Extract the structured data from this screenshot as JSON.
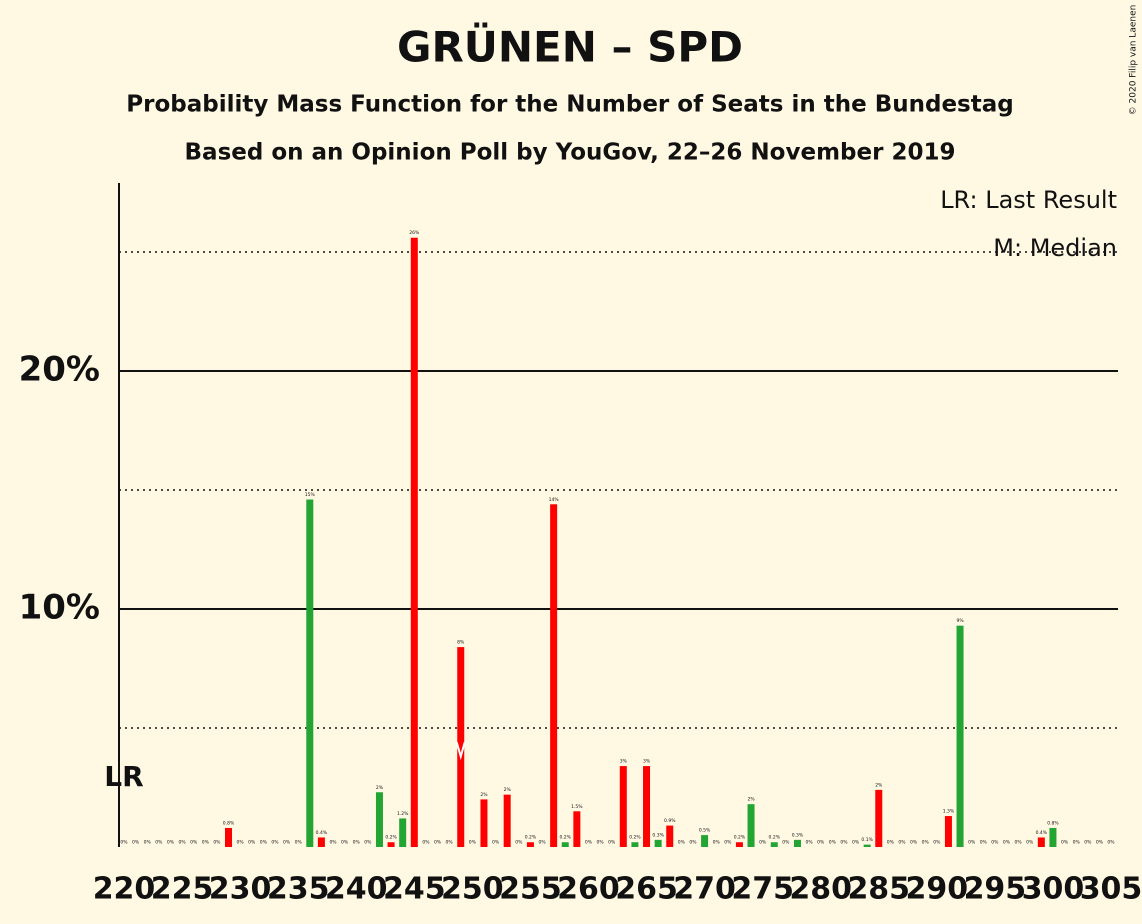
{
  "chart_data": {
    "type": "bar",
    "title": "GRÜNEN – SPD",
    "subtitle": "Probability Mass Function for the Number of Seats in the Bundestag",
    "subtitle2": "Based on an Opinion Poll by YouGov, 22–26 November 2019",
    "copyright": "© 2020 Filip van Laenen",
    "legend": [
      "LR: Last Result",
      "M: Median"
    ],
    "last_result": {
      "x": 220,
      "label": "LR"
    },
    "median": 249,
    "x": [
      220,
      221,
      222,
      223,
      224,
      225,
      226,
      227,
      228,
      229,
      230,
      231,
      232,
      233,
      234,
      235,
      236,
      237,
      238,
      239,
      240,
      241,
      242,
      243,
      244,
      245,
      246,
      247,
      248,
      249,
      250,
      251,
      252,
      253,
      254,
      255,
      256,
      257,
      258,
      259,
      260,
      261,
      262,
      263,
      264,
      265,
      266,
      267,
      268,
      269,
      270,
      271,
      272,
      273,
      274,
      275,
      276,
      277,
      278,
      279,
      280,
      281,
      282,
      283,
      284,
      285,
      286,
      287,
      288,
      289,
      290,
      291,
      292,
      293,
      294,
      295,
      296,
      297,
      298,
      299,
      300,
      301,
      302,
      303,
      304,
      305
    ],
    "values": [
      0,
      0,
      0,
      0,
      0,
      0,
      0,
      0,
      0,
      0.8,
      0,
      0,
      0,
      0,
      0,
      0,
      14.6,
      0.4,
      0,
      0,
      0,
      0,
      2.3,
      0.2,
      1.2,
      25.6,
      0,
      0,
      0,
      8.4,
      0,
      2.0,
      0,
      2.2,
      0,
      0.2,
      0,
      14.4,
      0.2,
      1.5,
      0,
      0,
      0,
      3.4,
      0.2,
      3.4,
      0.3,
      0.9,
      0,
      0,
      0.5,
      0,
      0,
      0.2,
      1.8,
      0,
      0.2,
      0,
      0.3,
      0,
      0,
      0,
      0,
      0,
      0.1,
      2.4,
      0,
      0,
      0,
      0,
      0,
      1.3,
      9.3,
      0,
      0,
      0,
      0,
      0,
      0,
      0.4,
      0.8,
      0,
      0,
      0,
      0,
      0
    ],
    "value_labels": [
      "0%",
      "0%",
      "0%",
      "0%",
      "0%",
      "0%",
      "0%",
      "0%",
      "0%",
      "0.8%",
      "0%",
      "0%",
      "0%",
      "0%",
      "0%",
      "0%",
      "15%",
      "0.4%",
      "0%",
      "0%",
      "0%",
      "0%",
      "2%",
      "0.2%",
      "1.2%",
      "26%",
      "0%",
      "0%",
      "0%",
      "8%",
      "0%",
      "2%",
      "0%",
      "2%",
      "0%",
      "0.2%",
      "0%",
      "14%",
      "0.2%",
      "1.5%",
      "0%",
      "0%",
      "0%",
      "3%",
      "0.2%",
      "3%",
      "0.3%",
      "0.9%",
      "0%",
      "0%",
      "0.5%",
      "0%",
      "0%",
      "0.2%",
      "2%",
      "0%",
      "0.2%",
      "0%",
      "0.3%",
      "0%",
      "0%",
      "0%",
      "0%",
      "0%",
      "0.1%",
      "2%",
      "0%",
      "0%",
      "0%",
      "0%",
      "0%",
      "1.3%",
      "9%",
      "0%",
      "0%",
      "0%",
      "0%",
      "0%",
      "0%",
      "0.4%",
      "0.8%",
      "0%",
      "0%",
      "0%",
      "0%",
      "0%"
    ],
    "colors": [
      "#22a532",
      "#ff0000",
      "#22a532",
      "#ff0000",
      "#22a532",
      "#ff0000",
      "#22a532",
      "#ff0000",
      "#22a532",
      "#ff0000",
      "#22a532",
      "#ff0000",
      "#22a532",
      "#ff0000",
      "#22a532",
      "#ff0000",
      "#22a532",
      "#ff0000",
      "#22a532",
      "#ff0000",
      "#22a532",
      "#ff0000",
      "#22a532",
      "#ff0000",
      "#22a532",
      "#ff0000",
      "#22a532",
      "#ff0000",
      "#22a532",
      "#ff0000",
      "#22a532",
      "#ff0000",
      "#22a532",
      "#ff0000",
      "#22a532",
      "#ff0000",
      "#22a532",
      "#ff0000",
      "#22a532",
      "#ff0000",
      "#22a532",
      "#ff0000",
      "#22a532",
      "#ff0000",
      "#22a532",
      "#ff0000",
      "#22a532",
      "#ff0000",
      "#22a532",
      "#ff0000",
      "#22a532",
      "#ff0000",
      "#22a532",
      "#ff0000",
      "#22a532",
      "#ff0000",
      "#22a532",
      "#ff0000",
      "#22a532",
      "#ff0000",
      "#22a532",
      "#ff0000",
      "#22a532",
      "#ff0000",
      "#22a532",
      "#ff0000",
      "#22a532",
      "#ff0000",
      "#22a532",
      "#ff0000",
      "#22a532",
      "#ff0000",
      "#22a532",
      "#ff0000",
      "#22a532",
      "#ff0000",
      "#22a532",
      "#ff0000",
      "#22a532",
      "#ff0000",
      "#22a532",
      "#ff0000",
      "#22a532",
      "#ff0000",
      "#22a532",
      "#ff0000"
    ],
    "xlim": [
      220,
      305
    ],
    "xticks": [
      220,
      225,
      230,
      235,
      240,
      245,
      250,
      255,
      260,
      265,
      270,
      275,
      280,
      285,
      290,
      295,
      300,
      305
    ],
    "ylim": [
      0,
      27.9
    ],
    "yticks": [
      {
        "value": 10,
        "label": "10%"
      },
      {
        "value": 20,
        "label": "20%"
      }
    ],
    "minor_yticks": [
      5,
      15,
      25
    ]
  }
}
